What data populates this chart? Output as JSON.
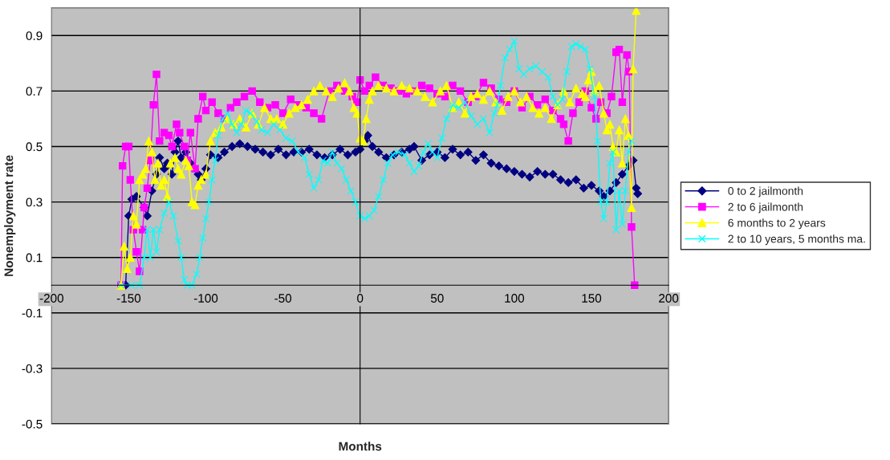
{
  "chart_data": {
    "type": "line",
    "xlabel": "Months",
    "ylabel": "Nonemployment rate",
    "xlim": [
      -200,
      200
    ],
    "xticks": [
      -200,
      -150,
      -100,
      -50,
      0,
      50,
      100,
      150,
      200
    ],
    "ylim": [
      -0.5,
      1.0
    ],
    "yticks": [
      -0.5,
      -0.3,
      -0.1,
      0.1,
      0.3,
      0.5,
      0.7,
      0.9
    ],
    "grid": "y",
    "legend": "right",
    "series": [
      {
        "name": "0 to 2 jailmonth",
        "color": "#000080",
        "marker": "diamond",
        "x": [
          -152,
          -150,
          -148,
          -145,
          -140,
          -138,
          -135,
          -132,
          -130,
          -127,
          -125,
          -122,
          -120,
          -118,
          -116,
          -113,
          -110,
          -105,
          -103,
          -100,
          -97,
          -92,
          -88,
          -83,
          -78,
          -73,
          -68,
          -63,
          -58,
          -53,
          -48,
          -43,
          -38,
          -33,
          -28,
          -23,
          -18,
          -13,
          -8,
          -3,
          0,
          3,
          5,
          8,
          12,
          17,
          22,
          27,
          32,
          35,
          40,
          45,
          50,
          55,
          60,
          65,
          70,
          75,
          80,
          85,
          90,
          95,
          100,
          105,
          110,
          115,
          120,
          125,
          130,
          135,
          140,
          145,
          150,
          155,
          158,
          162,
          166,
          170,
          174,
          177,
          179,
          180
        ],
        "values": [
          0,
          0.25,
          0.31,
          0.32,
          0.28,
          0.25,
          0.34,
          0.4,
          0.46,
          0.42,
          0.44,
          0.4,
          0.48,
          0.52,
          0.46,
          0.48,
          0.44,
          0.4,
          0.38,
          0.42,
          0.47,
          0.46,
          0.48,
          0.5,
          0.51,
          0.5,
          0.49,
          0.48,
          0.47,
          0.49,
          0.47,
          0.48,
          0.48,
          0.49,
          0.47,
          0.46,
          0.47,
          0.49,
          0.47,
          0.48,
          0.49,
          0.52,
          0.54,
          0.5,
          0.48,
          0.46,
          0.47,
          0.48,
          0.49,
          0.5,
          0.45,
          0.47,
          0.48,
          0.46,
          0.49,
          0.47,
          0.48,
          0.45,
          0.47,
          0.44,
          0.43,
          0.42,
          0.41,
          0.4,
          0.39,
          0.41,
          0.4,
          0.4,
          0.38,
          0.37,
          0.38,
          0.35,
          0.36,
          0.34,
          0.32,
          0.34,
          0.37,
          0.4,
          0.43,
          0.45,
          0.35,
          0.33
        ]
      },
      {
        "name": "2 to 6 jailmonth",
        "color": "#ff00ff",
        "marker": "square",
        "x": [
          -155,
          -154,
          -152,
          -150,
          -149,
          -147,
          -145,
          -143,
          -141,
          -140,
          -138,
          -136,
          -134,
          -132,
          -130,
          -127,
          -124,
          -122,
          -119,
          -117,
          -114,
          -112,
          -110,
          -107,
          -105,
          -102,
          -100,
          -96,
          -92,
          -88,
          -84,
          -80,
          -75,
          -70,
          -65,
          -60,
          -55,
          -50,
          -45,
          -40,
          -35,
          -30,
          -25,
          -20,
          -15,
          -10,
          -5,
          -2,
          0,
          3,
          6,
          10,
          15,
          20,
          25,
          30,
          35,
          40,
          45,
          50,
          55,
          60,
          65,
          70,
          75,
          80,
          85,
          90,
          95,
          100,
          105,
          110,
          115,
          120,
          125,
          130,
          132,
          135,
          138,
          142,
          146,
          150,
          153,
          156,
          160,
          163,
          166,
          168,
          170,
          173,
          174.5,
          176,
          178
        ],
        "values": [
          0,
          0.43,
          0.5,
          0.5,
          0.38,
          0.2,
          0.12,
          0.05,
          0.2,
          0.28,
          0.35,
          0.45,
          0.65,
          0.76,
          0.52,
          0.55,
          0.54,
          0.5,
          0.58,
          0.55,
          0.5,
          0.45,
          0.55,
          0.42,
          0.6,
          0.68,
          0.63,
          0.66,
          0.62,
          0.6,
          0.64,
          0.66,
          0.68,
          0.7,
          0.66,
          0.64,
          0.65,
          0.62,
          0.67,
          0.65,
          0.64,
          0.62,
          0.6,
          0.7,
          0.72,
          0.7,
          0.68,
          0.66,
          0.74,
          0.7,
          0.72,
          0.75,
          0.72,
          0.71,
          0.7,
          0.69,
          0.7,
          0.72,
          0.71,
          0.69,
          0.68,
          0.72,
          0.7,
          0.66,
          0.68,
          0.73,
          0.71,
          0.67,
          0.66,
          0.7,
          0.64,
          0.68,
          0.65,
          0.67,
          0.63,
          0.6,
          0.58,
          0.52,
          0.62,
          0.66,
          0.7,
          0.64,
          0.6,
          0.66,
          0.62,
          0.68,
          0.84,
          0.85,
          0.66,
          0.83,
          0.77,
          0.21,
          0
        ]
      },
      {
        "name": "6 months to 2 years",
        "color": "#ffff00",
        "marker": "triangle",
        "x": [
          -155,
          -153,
          -151,
          -149,
          -147,
          -145,
          -143,
          -141,
          -139,
          -137,
          -135,
          -133,
          -131,
          -129,
          -127,
          -125,
          -123,
          -120,
          -118,
          -116,
          -113,
          -111,
          -109,
          -107,
          -105,
          -103,
          -100,
          -97,
          -94,
          -90,
          -86,
          -82,
          -78,
          -74,
          -70,
          -66,
          -62,
          -58,
          -54,
          -50,
          -46,
          -42,
          -38,
          -34,
          -30,
          -26,
          -22,
          -18,
          -14,
          -10,
          -7,
          -4,
          -2,
          0,
          2,
          4,
          6,
          8,
          12,
          17,
          22,
          27,
          32,
          37,
          42,
          47,
          52,
          56,
          60,
          64,
          68,
          72,
          76,
          80,
          84,
          88,
          92,
          96,
          100,
          104,
          108,
          112,
          116,
          120,
          124,
          128,
          132,
          136,
          140,
          144,
          146,
          148,
          150,
          152,
          155,
          158,
          160,
          162,
          164,
          166,
          168,
          170,
          172,
          174,
          176,
          177,
          179
        ],
        "values": [
          0,
          0.14,
          0.06,
          0.1,
          0.25,
          0.22,
          0.38,
          0.4,
          0.42,
          0.52,
          0.48,
          0.38,
          0.44,
          0.36,
          0.38,
          0.32,
          0.44,
          0.46,
          0.42,
          0.4,
          0.45,
          0.43,
          0.3,
          0.29,
          0.36,
          0.38,
          0.4,
          0.52,
          0.55,
          0.57,
          0.6,
          0.58,
          0.6,
          0.57,
          0.62,
          0.58,
          0.64,
          0.6,
          0.6,
          0.58,
          0.62,
          0.64,
          0.65,
          0.67,
          0.7,
          0.72,
          0.7,
          0.68,
          0.71,
          0.73,
          0.7,
          0.64,
          0.62,
          0.53,
          0.52,
          0.6,
          0.67,
          0.7,
          0.72,
          0.71,
          0.7,
          0.72,
          0.71,
          0.7,
          0.68,
          0.66,
          0.7,
          0.72,
          0.64,
          0.66,
          0.62,
          0.68,
          0.69,
          0.67,
          0.7,
          0.66,
          0.63,
          0.68,
          0.7,
          0.66,
          0.68,
          0.64,
          0.62,
          0.64,
          0.6,
          0.65,
          0.7,
          0.66,
          0.71,
          0.69,
          0.68,
          0.74,
          0.77,
          0.7,
          0.72,
          0.62,
          0.56,
          0.58,
          0.5,
          0.48,
          0.56,
          0.44,
          0.6,
          0.54,
          0.28,
          0.78,
          0.99
        ]
      },
      {
        "name": "2 to 10 years, 5 months ma.",
        "color": "#00ffff",
        "marker": "cross",
        "x": [
          -155,
          -148,
          -143,
          -140,
          -138,
          -136,
          -134,
          -132,
          -130,
          -127,
          -124,
          -121,
          -118,
          -116,
          -114,
          -112,
          -109,
          -106,
          -104,
          -102,
          -100,
          -98,
          -96,
          -94,
          -92,
          -89,
          -86,
          -83,
          -80,
          -77,
          -74,
          -71,
          -67,
          -64,
          -60,
          -56,
          -52,
          -48,
          -44,
          -40,
          -36,
          -33,
          -30,
          -27,
          -24,
          -21,
          -18,
          -15,
          -12,
          -9,
          -6,
          -3,
          0,
          3,
          6,
          9,
          12,
          15,
          18,
          21,
          25,
          29,
          32,
          35,
          38,
          41,
          44,
          47,
          50,
          53,
          56,
          60,
          64,
          68,
          72,
          76,
          80,
          84,
          87,
          89,
          91,
          94,
          97,
          100,
          103,
          106,
          110,
          114,
          118,
          122,
          125,
          128,
          131,
          134,
          137,
          140,
          143,
          146,
          149,
          152,
          154,
          156,
          158,
          160,
          162,
          164,
          166,
          168,
          170,
          172,
          174,
          176
        ],
        "values": [
          0,
          0,
          0,
          0.1,
          0.2,
          0.1,
          0.2,
          0.12,
          0.2,
          0.26,
          0.3,
          0.25,
          0.16,
          0.1,
          0.02,
          0,
          0,
          0.04,
          0.1,
          0.17,
          0.24,
          0.3,
          0.38,
          0.45,
          0.54,
          0.6,
          0.62,
          0.58,
          0.55,
          0.58,
          0.63,
          0.62,
          0.59,
          0.56,
          0.55,
          0.58,
          0.56,
          0.53,
          0.52,
          0.48,
          0.46,
          0.4,
          0.35,
          0.38,
          0.45,
          0.44,
          0.48,
          0.44,
          0.42,
          0.38,
          0.34,
          0.3,
          0.25,
          0.24,
          0.25,
          0.27,
          0.32,
          0.38,
          0.44,
          0.47,
          0.48,
          0.47,
          0.44,
          0.41,
          0.43,
          0.48,
          0.51,
          0.48,
          0.46,
          0.53,
          0.6,
          0.65,
          0.64,
          0.66,
          0.61,
          0.58,
          0.6,
          0.55,
          0.62,
          0.65,
          0.72,
          0.82,
          0.85,
          0.88,
          0.78,
          0.76,
          0.78,
          0.79,
          0.77,
          0.75,
          0.68,
          0.65,
          0.67,
          0.77,
          0.86,
          0.87,
          0.86,
          0.85,
          0.78,
          0.68,
          0.52,
          0.3,
          0.24,
          0.3,
          0.44,
          0.48,
          0.2,
          0.34,
          0.22,
          0.34,
          0.48,
          0.52
        ]
      }
    ]
  }
}
